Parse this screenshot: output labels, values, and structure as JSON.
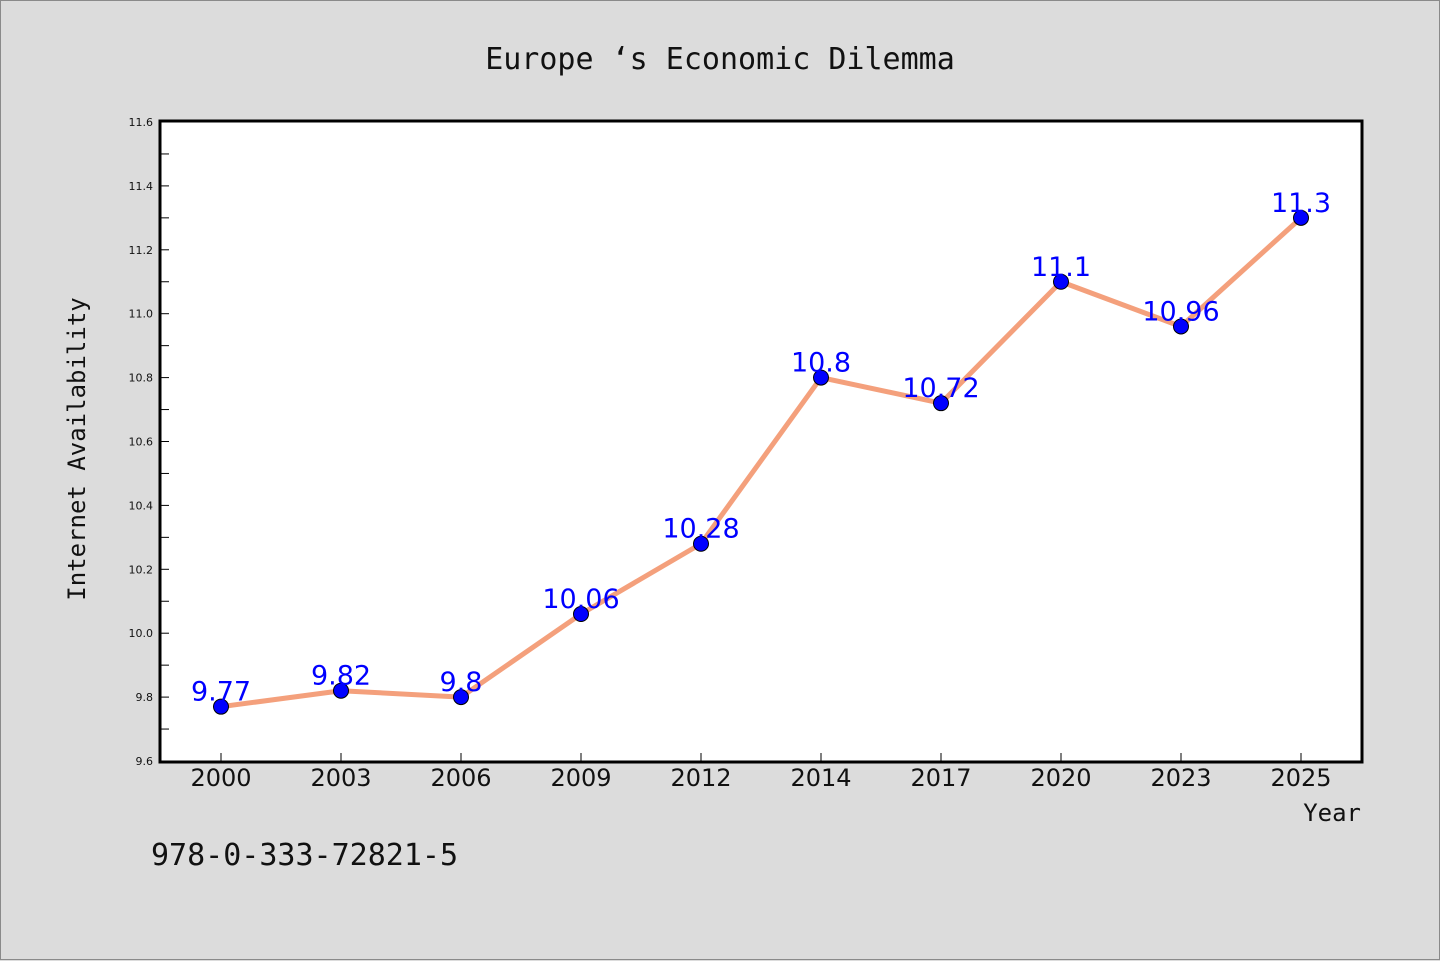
{
  "chart_data": {
    "type": "line",
    "title": "Europe ‘s Economic Dilemma",
    "xlabel": "Year",
    "ylabel": "Internet Availability",
    "categories": [
      "2000",
      "2003",
      "2006",
      "2009",
      "2012",
      "2014",
      "2017",
      "2020",
      "2023",
      "2025"
    ],
    "series": [
      {
        "values": [
          9.77,
          9.82,
          9.8,
          10.06,
          10.28,
          10.8,
          10.72,
          11.1,
          10.96,
          11.3
        ],
        "data_labels": [
          "9.77",
          "9.82",
          "9.8",
          "10.06",
          "10.28",
          "10.8",
          "10.72",
          "11.1",
          "10.96",
          "11.3"
        ],
        "line_color": "#f4a07c",
        "marker_color": "#0000ff"
      }
    ],
    "ylim": [
      9.6,
      11.6
    ],
    "yticks": [
      "9.6",
      "9.8",
      "10.0",
      "10.2",
      "10.4",
      "10.6",
      "10.8",
      "11.0",
      "11.2",
      "11.4",
      "11.6"
    ],
    "grid": false,
    "legend": "none",
    "background_color": "#dcdcdc",
    "plot_background_color": "#ffffff"
  },
  "footer_text": "978-0-333-72821-5"
}
